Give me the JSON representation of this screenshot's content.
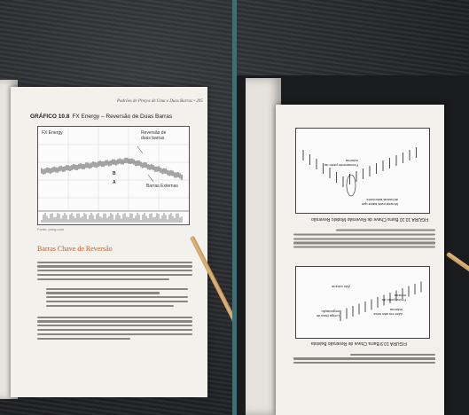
{
  "left_book": {
    "running_header": "Padrões de Preços de Uma e Duas Barras • 205",
    "figure_number": "GRÁFICO 10.8",
    "figure_title": "FX Energy – Reversão de Duas Barras",
    "chart": {
      "series_label": "FX Energy",
      "annotation_reversal": "Reversão de duas barras",
      "annotation_bars": "Barras Externas",
      "mark_a": "A",
      "mark_b": "B",
      "source_caption": "Fonte: pring.com"
    },
    "section_heading": "Barras Chave de Reversão"
  },
  "right_book": {
    "figure_top_title": "FIGURA 10.10 Barra Chave de Reversão Modelo Reversão",
    "figure_bottom_title": "FIGURA 10.9 Barra Chave de Reversão Baixista",
    "top_labels": [
      "Fechamento perto da máxima",
      "Mínima mais baixa que as barras anteriores"
    ],
    "bottom_labels": [
      "Longa faixa de negociação",
      "Alto volume",
      "Abre em alta nova máxima",
      "Fecha perto da mínima"
    ]
  },
  "colors": {
    "divider": "#3f6e73",
    "section_heading": "#c45d2a",
    "page": "#f3f1ec",
    "background": "#2a2b2e"
  }
}
